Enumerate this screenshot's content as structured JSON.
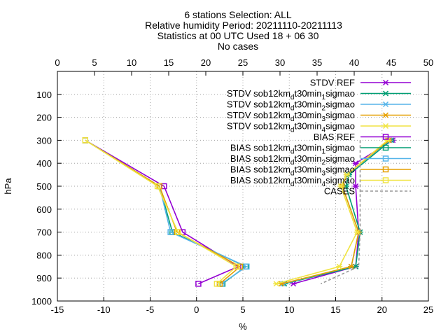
{
  "chart_data": {
    "type": "line",
    "title_lines": [
      "6 stations Selection: ALL",
      "Relative humidity  Period: 20211110-20211113",
      "Statistics at 00 UTC  Used 18 + 06 30",
      "No cases"
    ],
    "xlabel": "%",
    "ylabel": "hPa",
    "xlim": [
      -15,
      25
    ],
    "x_ticks": [
      -15,
      -10,
      -5,
      0,
      5,
      10,
      15,
      20,
      25
    ],
    "x2lim": [
      0,
      50
    ],
    "x2_ticks": [
      0,
      5,
      10,
      15,
      20,
      25,
      30,
      35,
      40,
      45,
      50
    ],
    "ylim": [
      1000,
      0
    ],
    "y_ticks": [
      100,
      200,
      300,
      400,
      500,
      600,
      700,
      800,
      900,
      1000
    ],
    "grid": true,
    "legend_position": "top-right",
    "series": [
      {
        "name": "STDV REF",
        "color": "#9400d3",
        "marker": "x",
        "axis": "top",
        "points": [
          [
            45.2,
            300
          ],
          [
            40.2,
            400
          ],
          [
            40.2,
            500
          ],
          [
            40.6,
            700
          ],
          [
            40.2,
            850
          ],
          [
            31.8,
            925
          ]
        ]
      },
      {
        "name": "STDV sob12km_dt30min_1sigmao",
        "name_parts": [
          "STDV sob12km",
          "d",
          "t30min",
          "1",
          "sigmao"
        ],
        "color": "#009e73",
        "marker": "x",
        "axis": "top",
        "points": [
          [
            45.0,
            300
          ],
          [
            39.3,
            450
          ],
          [
            38.9,
            500
          ],
          [
            40.8,
            700
          ],
          [
            40.2,
            850
          ],
          [
            30.6,
            925
          ]
        ]
      },
      {
        "name": "STDV sob12km_dt30min_2sigmao",
        "name_parts": [
          "STDV sob12km",
          "d",
          "t30min",
          "2",
          "sigmao"
        ],
        "color": "#56b4e9",
        "marker": "x",
        "axis": "top",
        "points": [
          [
            44.8,
            300
          ],
          [
            39.0,
            450
          ],
          [
            38.4,
            500
          ],
          [
            40.6,
            700
          ],
          [
            39.6,
            850
          ],
          [
            30.4,
            925
          ]
        ]
      },
      {
        "name": "STDV sob12km_dt30min_3sigmao",
        "name_parts": [
          "STDV sob12km",
          "d",
          "t30min",
          "3",
          "sigmao"
        ],
        "color": "#e69f00",
        "marker": "x",
        "axis": "top",
        "points": [
          [
            44.7,
            300
          ],
          [
            39.0,
            450
          ],
          [
            38.4,
            500
          ],
          [
            40.6,
            700
          ],
          [
            39.6,
            850
          ],
          [
            30.2,
            925
          ]
        ]
      },
      {
        "name": "STDV sob12km_dt30min_4sigmao",
        "name_parts": [
          "STDV sob12km",
          "d",
          "t30min",
          "4",
          "sigmao"
        ],
        "color": "#f0e442",
        "marker": "x",
        "axis": "top",
        "points": [
          [
            44.5,
            300
          ],
          [
            39.0,
            450
          ],
          [
            38.2,
            500
          ],
          [
            40.4,
            700
          ],
          [
            38.0,
            850
          ],
          [
            29.5,
            925
          ]
        ]
      },
      {
        "name": "BIAS REF",
        "color": "#9400d3",
        "marker": "square",
        "axis": "bottom",
        "points": [
          [
            -12.0,
            300
          ],
          [
            -3.5,
            500
          ],
          [
            -1.5,
            700
          ],
          [
            4.5,
            850
          ],
          [
            0.2,
            925
          ]
        ]
      },
      {
        "name": "BIAS sob12km_dt30min_1sigmao",
        "name_parts": [
          "BIAS sob12km",
          "d",
          "t30min",
          "1",
          "sigmao"
        ],
        "color": "#009e73",
        "marker": "square",
        "axis": "bottom",
        "points": [
          [
            -12.0,
            300
          ],
          [
            -4.0,
            500
          ],
          [
            -2.6,
            700
          ],
          [
            5.3,
            850
          ],
          [
            2.8,
            925
          ]
        ]
      },
      {
        "name": "BIAS sob12km_dt30min_2sigmao",
        "name_parts": [
          "BIAS sob12km",
          "d",
          "t30min",
          "2",
          "sigmao"
        ],
        "color": "#56b4e9",
        "marker": "square",
        "axis": "bottom",
        "points": [
          [
            -12.0,
            300
          ],
          [
            -4.0,
            500
          ],
          [
            -2.8,
            700
          ],
          [
            5.4,
            850
          ],
          [
            2.7,
            925
          ]
        ]
      },
      {
        "name": "BIAS sob12km_dt30min_3sigmao",
        "name_parts": [
          "BIAS sob12km",
          "d",
          "t30min",
          "3",
          "sigmao"
        ],
        "color": "#e69f00",
        "marker": "square",
        "axis": "bottom",
        "points": [
          [
            -12.0,
            300
          ],
          [
            -4.0,
            500
          ],
          [
            -2.1,
            700
          ],
          [
            4.7,
            850
          ],
          [
            2.5,
            925
          ]
        ]
      },
      {
        "name": "BIAS sob12km_dt30min_4sigmao",
        "name_parts": [
          "BIAS sob12km",
          "d",
          "t30min",
          "4",
          "sigmao"
        ],
        "color": "#f0e442",
        "marker": "square",
        "axis": "bottom",
        "points": [
          [
            -12.0,
            300
          ],
          [
            -4.2,
            500
          ],
          [
            -2.0,
            700
          ],
          [
            4.3,
            850
          ],
          [
            2.2,
            925
          ]
        ]
      },
      {
        "name": "CASES",
        "color": "#999999",
        "marker": "none",
        "dashed": true,
        "axis": "top",
        "points": [
          [
            40.8,
            300
          ],
          [
            40.8,
            700
          ],
          [
            40.6,
            850
          ],
          [
            35.5,
            925
          ]
        ]
      }
    ]
  }
}
